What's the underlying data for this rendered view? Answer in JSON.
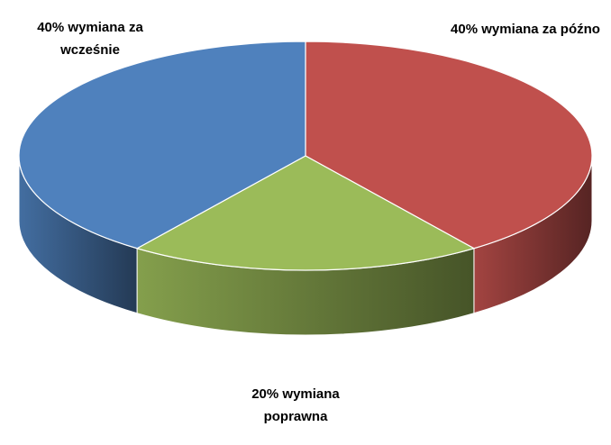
{
  "chart_data": {
    "type": "pie",
    "values": [
      40,
      20,
      40
    ],
    "value_labels": [
      "40% wymiana za późno",
      "20% wymiana poprawna",
      "40% wymiana za wcześnie"
    ],
    "colors": [
      "#c0504d",
      "#9bbb59",
      "#4f81bd"
    ]
  }
}
